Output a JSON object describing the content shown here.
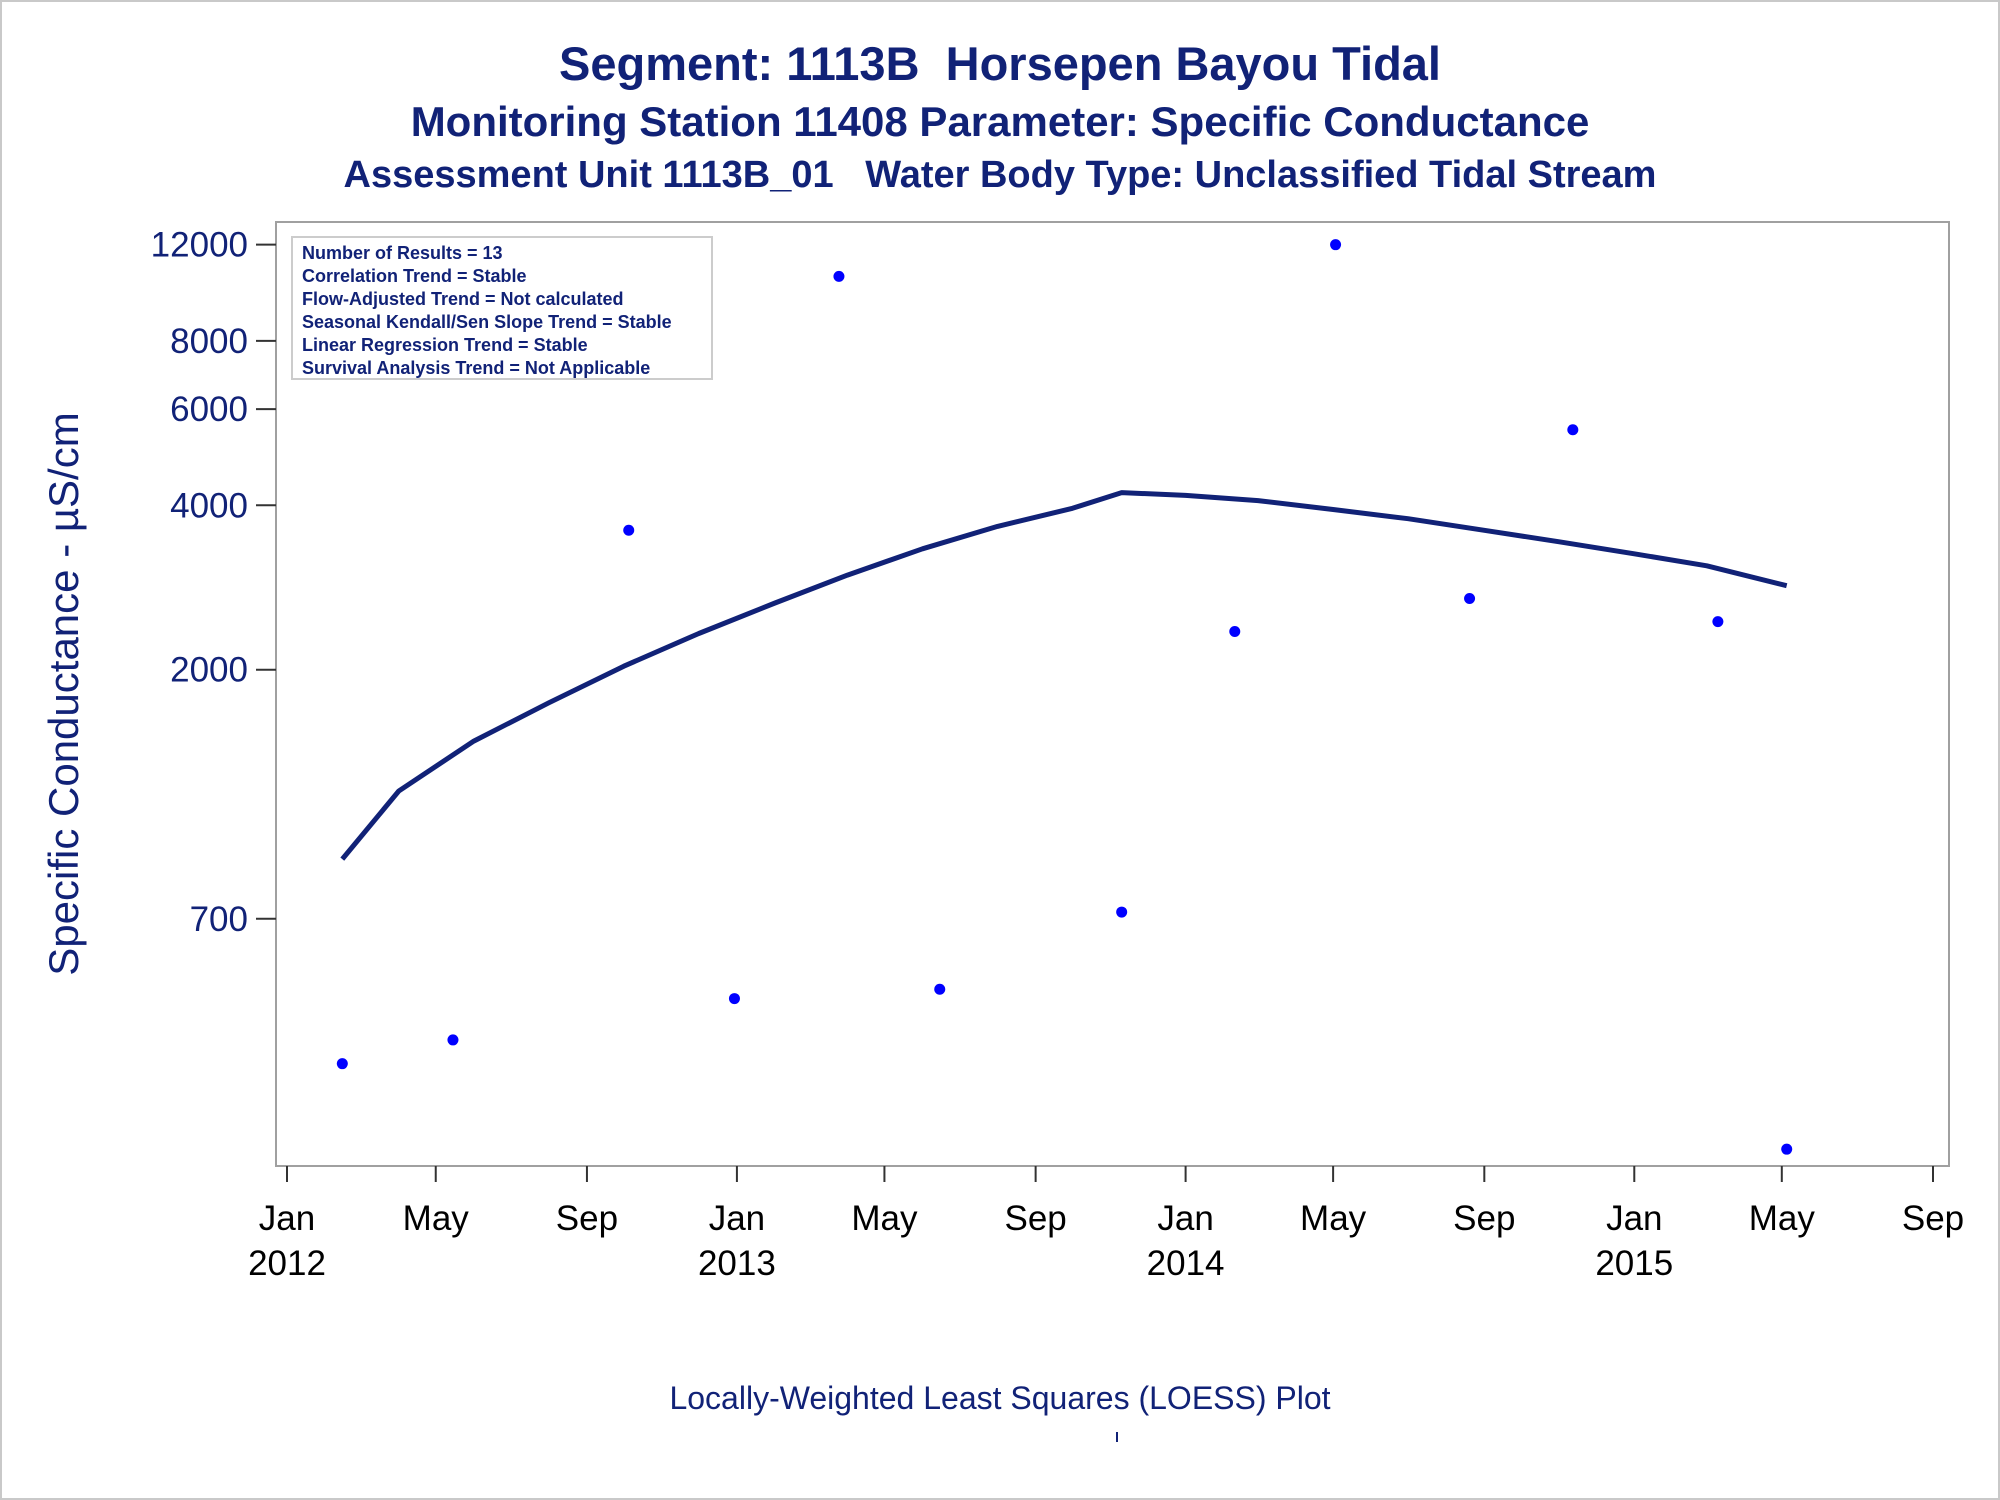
{
  "chart_data": {
    "type": "scatter",
    "title": "Segment: 1113B  Horsepen Bayou Tidal",
    "subtitle": "Monitoring Station 11408 Parameter: Specific Conductance",
    "subtitle2": "Assessment Unit 1113B_01   Water Body Type: Unclassified Tidal Stream",
    "ylabel": "Specific Conductance -  µS/cm",
    "xlabel": "",
    "footnote": "Locally-Weighted Least Squares (LOESS) Plot",
    "y_scale": "log",
    "ylim": [
      250,
      12500
    ],
    "xlim": [
      "2012-01-01",
      "2015-09-01"
    ],
    "y_ticks": [
      700,
      2000,
      4000,
      6000,
      8000,
      12000
    ],
    "x_ticks": [
      {
        "date": "2012-01-01",
        "label": "Jan",
        "year": "2012"
      },
      {
        "date": "2012-05-01",
        "label": "May",
        "year": ""
      },
      {
        "date": "2012-09-01",
        "label": "Sep",
        "year": ""
      },
      {
        "date": "2013-01-01",
        "label": "Jan",
        "year": "2013"
      },
      {
        "date": "2013-05-01",
        "label": "May",
        "year": ""
      },
      {
        "date": "2013-09-01",
        "label": "Sep",
        "year": ""
      },
      {
        "date": "2014-01-01",
        "label": "Jan",
        "year": "2014"
      },
      {
        "date": "2014-05-01",
        "label": "May",
        "year": ""
      },
      {
        "date": "2014-09-01",
        "label": "Sep",
        "year": ""
      },
      {
        "date": "2015-01-01",
        "label": "Jan",
        "year": "2015"
      },
      {
        "date": "2015-05-01",
        "label": "May",
        "year": ""
      },
      {
        "date": "2015-09-01",
        "label": "Sep",
        "year": ""
      }
    ],
    "legend_box": [
      "Number of Results = 13",
      "Correlation Trend = Stable",
      "Flow-Adjusted Trend = Not calculated",
      "Seasonal Kendall/Sen Slope Trend = Stable",
      "Linear Regression Trend = Stable",
      "Survival Analysis Trend = Not Applicable"
    ],
    "legend_placement": "top-left",
    "grid": false,
    "series": [
      {
        "kind": "points",
        "color": "#0000ff",
        "points": [
          {
            "x": "2012-02-15",
            "y": 380
          },
          {
            "x": "2012-05-15",
            "y": 420
          },
          {
            "x": "2012-10-05",
            "y": 3600
          },
          {
            "x": "2012-12-30",
            "y": 500
          },
          {
            "x": "2013-03-25",
            "y": 10500
          },
          {
            "x": "2013-06-15",
            "y": 520
          },
          {
            "x": "2013-11-10",
            "y": 720
          },
          {
            "x": "2014-02-10",
            "y": 2350
          },
          {
            "x": "2014-05-03",
            "y": 12000
          },
          {
            "x": "2014-08-20",
            "y": 2700
          },
          {
            "x": "2014-11-12",
            "y": 5500
          },
          {
            "x": "2015-03-10",
            "y": 2450
          },
          {
            "x": "2015-05-05",
            "y": 265
          }
        ]
      },
      {
        "kind": "line",
        "color": "#112277",
        "points": [
          {
            "x": "2012-02-15",
            "y": 900
          },
          {
            "x": "2012-04-01",
            "y": 1200
          },
          {
            "x": "2012-06-01",
            "y": 1480
          },
          {
            "x": "2012-08-01",
            "y": 1740
          },
          {
            "x": "2012-10-01",
            "y": 2030
          },
          {
            "x": "2012-12-01",
            "y": 2330
          },
          {
            "x": "2013-02-01",
            "y": 2650
          },
          {
            "x": "2013-04-01",
            "y": 2980
          },
          {
            "x": "2013-06-01",
            "y": 3330
          },
          {
            "x": "2013-08-01",
            "y": 3660
          },
          {
            "x": "2013-10-01",
            "y": 3950
          },
          {
            "x": "2013-11-10",
            "y": 4220
          },
          {
            "x": "2014-01-01",
            "y": 4170
          },
          {
            "x": "2014-03-01",
            "y": 4080
          },
          {
            "x": "2014-05-01",
            "y": 3930
          },
          {
            "x": "2014-07-01",
            "y": 3780
          },
          {
            "x": "2014-09-01",
            "y": 3600
          },
          {
            "x": "2014-11-01",
            "y": 3430
          },
          {
            "x": "2015-01-01",
            "y": 3260
          },
          {
            "x": "2015-03-01",
            "y": 3100
          },
          {
            "x": "2015-05-05",
            "y": 2850
          }
        ]
      }
    ]
  }
}
